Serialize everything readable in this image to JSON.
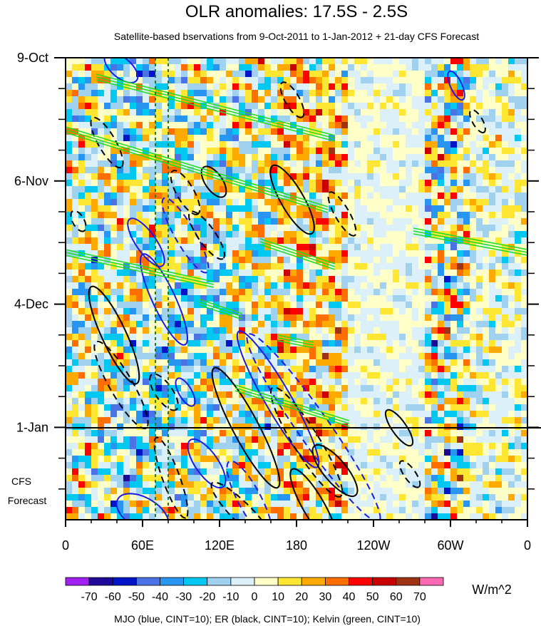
{
  "chart_data": {
    "type": "heatmap",
    "title": "OLR anomalies: 17.5S - 2.5S",
    "subtitle": "Satellite-based bservations from 9-Oct-2011 to 1-Jan-2012 + 21-day CFS Forecast",
    "x_ticks": [
      {
        "lon": 0,
        "label": "0"
      },
      {
        "lon": 60,
        "label": "60E"
      },
      {
        "lon": 120,
        "label": "120E"
      },
      {
        "lon": 180,
        "label": "180"
      },
      {
        "lon": 240,
        "label": "120W"
      },
      {
        "lon": 300,
        "label": "60W"
      },
      {
        "lon": 360,
        "label": "0"
      }
    ],
    "x_range": [
      0,
      360
    ],
    "time_range_days": [
      0,
      105
    ],
    "y_ticks": [
      {
        "day": 0,
        "label": "9-Oct"
      },
      {
        "day": 28,
        "label": "6-Nov"
      },
      {
        "day": 56,
        "label": "4-Dec"
      },
      {
        "day": 84,
        "label": "1-Jan"
      }
    ],
    "forecast_start_day": 84,
    "forecast_label": [
      "CFS",
      "Forecast"
    ],
    "colorbar": {
      "levels": [
        -70,
        -60,
        -50,
        -40,
        -30,
        -20,
        -10,
        0,
        10,
        20,
        30,
        40,
        50,
        60,
        70
      ],
      "level_labels": [
        "-70",
        "-60",
        "-50",
        "-40",
        "-30",
        "-20",
        "-10",
        "0",
        "10",
        "20",
        "30",
        "40",
        "50",
        "60",
        "70"
      ],
      "colors": [
        "#a020f0",
        "#1e0a96",
        "#0014c8",
        "#4b73e6",
        "#2896f0",
        "#00c8f0",
        "#a0d2f0",
        "#dcf0fa",
        "#ffffc8",
        "#ffe632",
        "#ffaa00",
        "#ff6e00",
        "#ff0000",
        "#c80000",
        "#a03214",
        "#ff69b4"
      ],
      "units": "W/m^2"
    },
    "contours_legend": "MJO (blue, CINT=10); ER (black, CINT=10); Kelvin (green, CINT=10)",
    "series": [
      {
        "name": "MJO",
        "color": "#1a1ae6",
        "cint": 10
      },
      {
        "name": "ER",
        "color": "#000000",
        "cint": 10
      },
      {
        "name": "Kelvin",
        "color": "#22dd22",
        "cint": 10
      }
    ],
    "reference_lines_lon": [
      70,
      80
    ]
  }
}
